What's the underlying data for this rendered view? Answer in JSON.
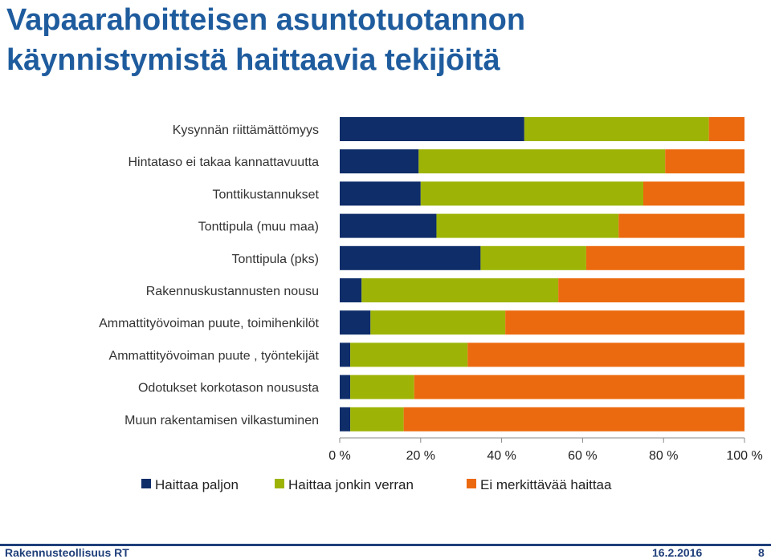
{
  "header": {
    "title_line1": "Vapaarahoitteisen asuntotuotannon",
    "title_line2": "käynnistymistä haittaavia tekijöitä"
  },
  "chart_data": {
    "type": "bar",
    "orientation": "horizontal",
    "stacked": "percent",
    "categories": [
      "Kysynnän riittämättömyys",
      "Hintataso ei takaa kannattavuutta",
      "Tonttikustannukset",
      "Tonttipula (muu maa)",
      "Tonttipula (pks)",
      "Rakennuskustannusten nousu",
      "Ammattityövoiman puute, toimihenkilöt",
      "Ammattityövoiman puute ,  työntekijät",
      "Odotukset korkotason noususta",
      "Muun rakentamisen vilkastuminen"
    ],
    "series": [
      {
        "name": "Haittaa paljon",
        "color": "#0f2d69",
        "values": [
          45.6,
          19.5,
          20.0,
          23.9,
          34.8,
          5.4,
          7.6,
          2.6,
          2.6,
          2.6
        ]
      },
      {
        "name": "Haittaa jonkin verran",
        "color": "#9db406",
        "values": [
          45.6,
          60.9,
          55.0,
          45.0,
          26.1,
          48.6,
          33.3,
          29.0,
          15.8,
          13.2
        ]
      },
      {
        "name": "Ei merkittävää haittaa",
        "color": "#ec6a0f",
        "values": [
          8.8,
          19.6,
          25.0,
          31.1,
          39.1,
          46.0,
          59.1,
          68.4,
          81.6,
          84.2
        ]
      }
    ],
    "xlim": [
      0,
      100
    ],
    "xticks": [
      "0 %",
      "20 %",
      "40 %",
      "60 %",
      "80 %",
      "100 %"
    ],
    "legend_position": "bottom"
  },
  "footer": {
    "organization": "Rakennusteollisuus RT",
    "date": "16.2.2016",
    "page": "8"
  }
}
